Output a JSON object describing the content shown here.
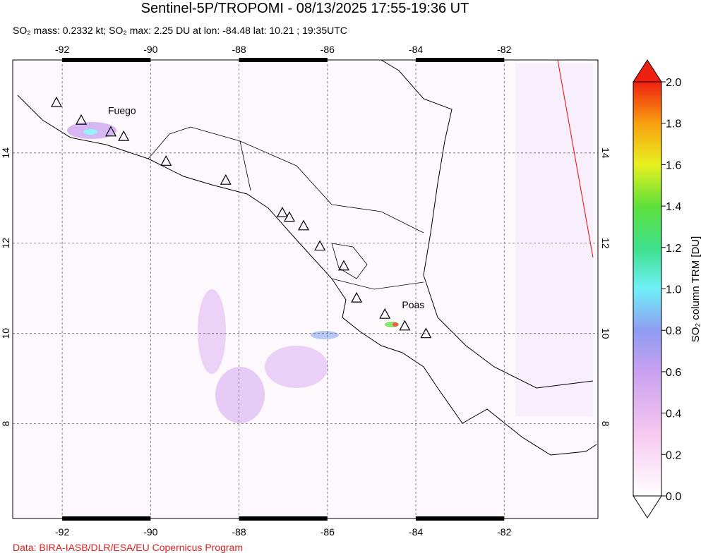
{
  "map": {
    "title": "Sentinel-5P/TROPOMI - 08/13/2025 17:55-19:36 UT",
    "subtitle": "SO₂ mass: 0.2332 kt; SO₂ max: 2.25 DU at lon: -84.48 lat: 10.21 ; 19:35UTC",
    "credit": "Data: BIRA-IASB/DLR/ESA/EU Copernicus Program",
    "lonlim": [
      -93.12,
      -79.88
    ],
    "latlim": [
      5.9,
      16.06
    ],
    "lonticks": [
      -92,
      -90,
      -88,
      -86,
      -84,
      -82
    ],
    "latticks": [
      8,
      10,
      12,
      14
    ],
    "grid": true,
    "volcanoes": [
      {
        "lon": -92.13,
        "lat": 15.12
      },
      {
        "lon": -91.57,
        "lat": 14.73
      },
      {
        "lon": -90.9,
        "lat": 14.47,
        "name": "Fuego"
      },
      {
        "lon": -90.61,
        "lat": 14.37
      },
      {
        "lon": -89.65,
        "lat": 13.82
      },
      {
        "lon": -88.3,
        "lat": 13.4
      },
      {
        "lon": -87.02,
        "lat": 12.68
      },
      {
        "lon": -86.86,
        "lat": 12.58
      },
      {
        "lon": -86.54,
        "lat": 12.39
      },
      {
        "lon": -86.17,
        "lat": 11.94
      },
      {
        "lon": -85.63,
        "lat": 11.5
      },
      {
        "lon": -85.34,
        "lat": 10.79
      },
      {
        "lon": -84.7,
        "lat": 10.43
      },
      {
        "lon": -84.25,
        "lat": 10.17,
        "name": "Poas"
      },
      {
        "lon": -83.77,
        "lat": 10.0
      }
    ],
    "colorbar": {
      "label": "SO₂ column TRM [DU]",
      "lim": [
        0,
        2
      ],
      "ticks": [
        {
          "value": 0,
          "label": "0.0"
        },
        0.2,
        0.4,
        0.6,
        0.8,
        {
          "value": 1,
          "label": "1.0"
        },
        1.2,
        1.4,
        1.6,
        1.8,
        {
          "value": 2,
          "label": "2.0"
        }
      ]
    }
  }
}
